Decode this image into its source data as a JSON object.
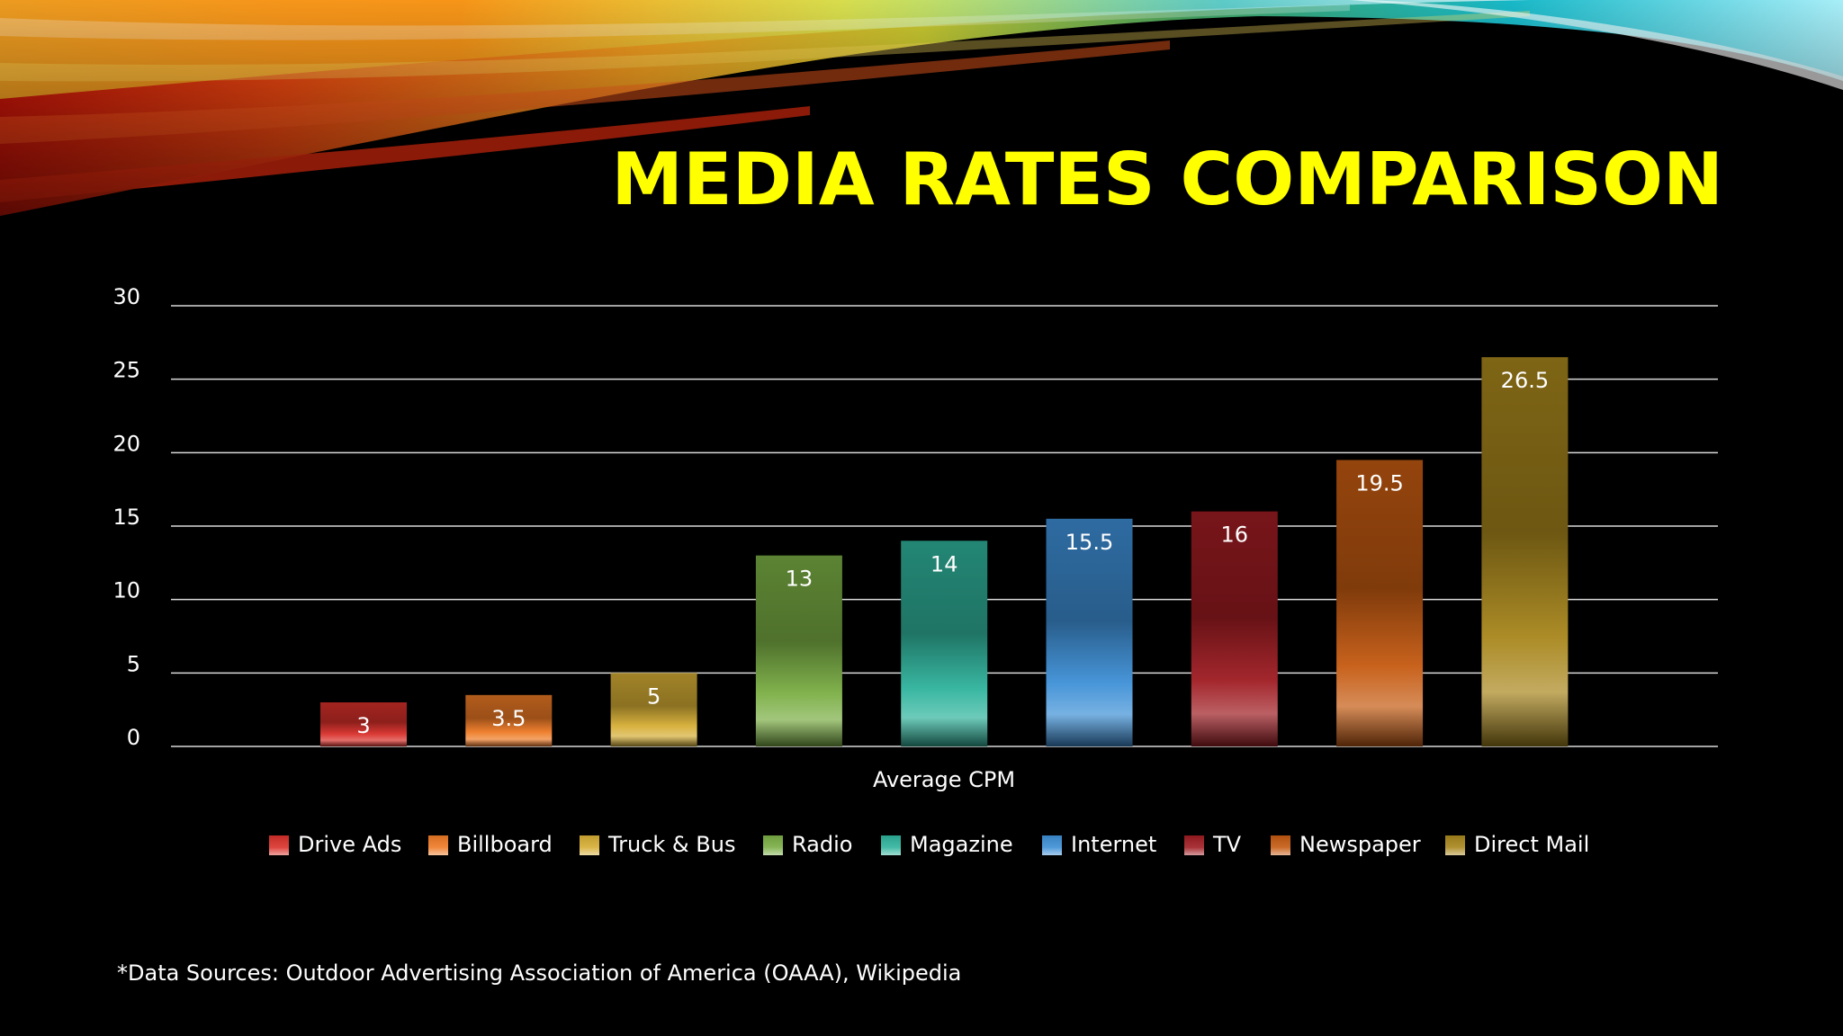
{
  "slide": {
    "title": "MEDIA RATES COMPARISON",
    "footnote": "*Data Sources:  Outdoor Advertising Association of America (OAAA), Wikipedia"
  },
  "chart_data": {
    "type": "bar",
    "title": "",
    "xlabel": "Average CPM",
    "ylabel": "",
    "ylim": [
      0,
      30
    ],
    "yticks": [
      0,
      5,
      10,
      15,
      20,
      25,
      30
    ],
    "grid": true,
    "legend_position": "bottom",
    "categories": [
      "Average CPM"
    ],
    "series": [
      {
        "name": "Drive Ads",
        "values": [
          3
        ],
        "label": "3",
        "color": "#d9302a"
      },
      {
        "name": "Billboard",
        "values": [
          3.5
        ],
        "label": "3.5",
        "color": "#ee7a25"
      },
      {
        "name": "Truck & Bus",
        "values": [
          5
        ],
        "label": "5",
        "color": "#d6ae35"
      },
      {
        "name": "Radio",
        "values": [
          13
        ],
        "label": "13",
        "color": "#7aae44"
      },
      {
        "name": "Magazine",
        "values": [
          14
        ],
        "label": "14",
        "color": "#2fb39c"
      },
      {
        "name": "Internet",
        "values": [
          15.5
        ],
        "label": "15.5",
        "color": "#3d8fd6"
      },
      {
        "name": "TV",
        "values": [
          16
        ],
        "label": "16",
        "color": "#9e1c22"
      },
      {
        "name": "Newspaper",
        "values": [
          19.5
        ],
        "label": "19.5",
        "color": "#c55a11"
      },
      {
        "name": "Direct Mail",
        "values": [
          26.5
        ],
        "label": "26.5",
        "color": "#a8861c"
      }
    ]
  }
}
